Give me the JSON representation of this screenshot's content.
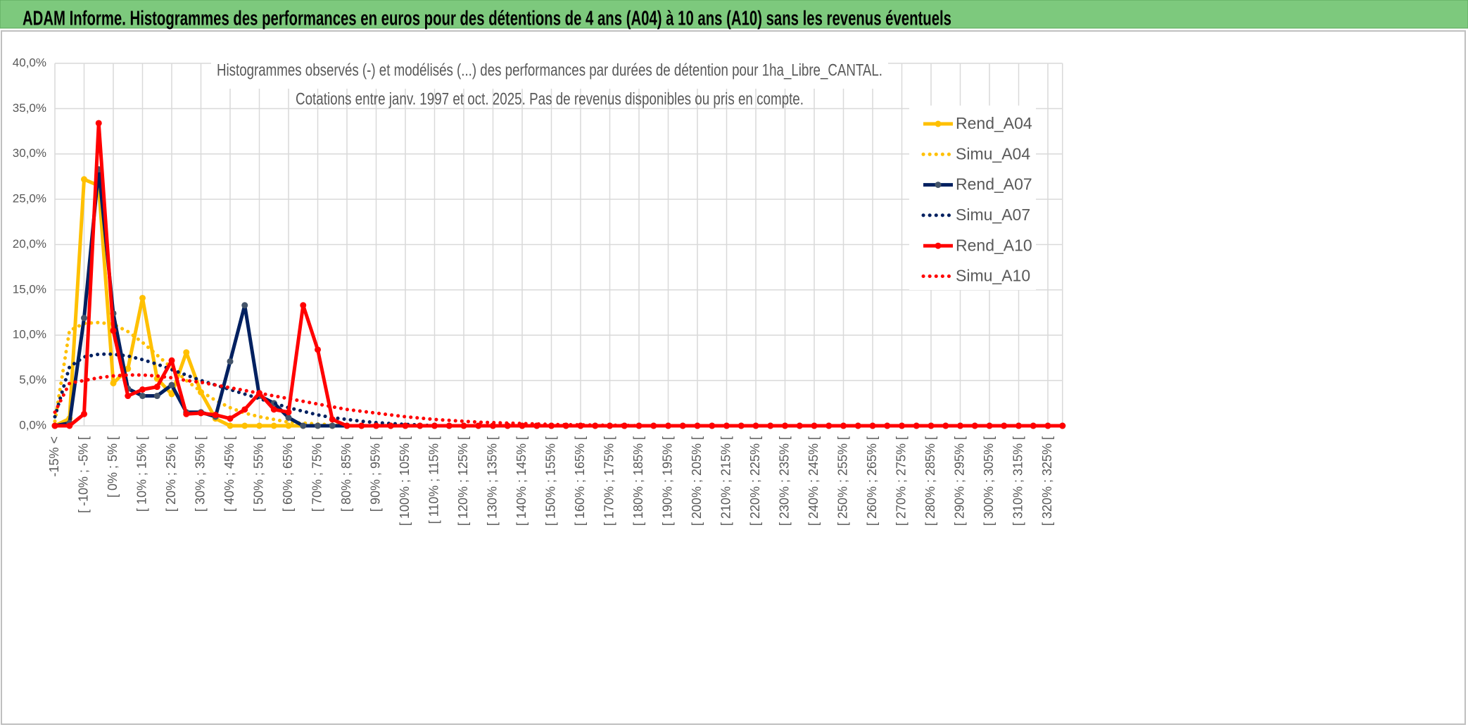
{
  "header": {
    "title": "ADAM Informe. Histogrammes des performances en euros pour des détentions de 4 ans (A04) à 10 ans (A10) sans les revenus éventuels"
  },
  "chart_data": {
    "type": "line",
    "title": "Histogrammes observés (-) et modélisés (...) des performances par durées de détention pour 1ha_Libre_CANTAL.",
    "subtitle": "Cotations entre janv. 1997 et oct. 2025. Pas de revenus disponibles ou pris en compte.",
    "categories": [
      "-15% <",
      null,
      "[ -10% ; -5% [",
      null,
      "[ 0% ; 5% [",
      null,
      "[ 10% ; 15% [",
      null,
      "[ 20% ; 25% [",
      null,
      "[ 30% ; 35% [",
      null,
      "[ 40% ; 45% [",
      null,
      "[ 50% ; 55% [",
      null,
      "[ 60% ; 65% [",
      null,
      "[ 70% ; 75% [",
      null,
      "[ 80% ; 85% [",
      null,
      "[ 90% ; 95% [",
      null,
      "[ 100% ; 105% [",
      null,
      "[ 110% ; 115% [",
      null,
      "[ 120% ; 125% [",
      null,
      "[ 130% ; 135% [",
      null,
      "[ 140% ; 145% [",
      null,
      "[ 150% ; 155% [",
      null,
      "[ 160% ; 165% [",
      null,
      "[ 170% ; 175% [",
      null,
      "[ 180% ; 185% [",
      null,
      "[ 190% ; 195% [",
      null,
      "[ 200% ; 205% [",
      null,
      "[ 210% ; 215% [",
      null,
      "[ 220% ; 225% [",
      null,
      "[ 230% ; 235% [",
      null,
      "[ 240% ; 245% [",
      null,
      "[ 250% ; 255% [",
      null,
      "[ 260% ; 265% [",
      null,
      "[ 270% ; 275% [",
      null,
      "[ 280% ; 285% [",
      null,
      "[ 290% ; 295% [",
      null,
      "[ 300% ; 305% [",
      null,
      "[ 310% ; 315% [",
      null,
      "[ 320% ; 325% [",
      null
    ],
    "series": [
      {
        "name": "Rend_A04",
        "color": "#ffc000",
        "style": "solid",
        "markers": true,
        "values": [
          0,
          0.8,
          27.2,
          26.5,
          4.7,
          6.3,
          14.1,
          5.2,
          3.5,
          8.1,
          3.7,
          0.8,
          0,
          0,
          0,
          0,
          0,
          0,
          0,
          0,
          0,
          0,
          0,
          0,
          0,
          0,
          0,
          0,
          0,
          0,
          0,
          0,
          0,
          0,
          0,
          0,
          0,
          0,
          0,
          0,
          0,
          0,
          0,
          0,
          0,
          0,
          0,
          0,
          0,
          0,
          0,
          0,
          0,
          0,
          0,
          0,
          0,
          0,
          0,
          0,
          0,
          0,
          0,
          0,
          0,
          0,
          0,
          0,
          0,
          0
        ]
      },
      {
        "name": "Simu_A04",
        "color": "#ffc000",
        "style": "dotted",
        "markers": false,
        "values": [
          0.5,
          10.5,
          11.3,
          11.4,
          11.2,
          10.4,
          9.2,
          7.8,
          6.4,
          5.0,
          3.8,
          2.8,
          2.0,
          1.4,
          1.0,
          0.7,
          0.4,
          0.3,
          0.2,
          0.1,
          0,
          0,
          0,
          0,
          0,
          0,
          0,
          0,
          0,
          0,
          0,
          0,
          0,
          0,
          0,
          0,
          0,
          0,
          0,
          0,
          0,
          0,
          0,
          0,
          0,
          0,
          0,
          0,
          0,
          0,
          0,
          0,
          0,
          0,
          0,
          0,
          0,
          0,
          0,
          0,
          0,
          0,
          0,
          0,
          0,
          0,
          0,
          0,
          0,
          0
        ]
      },
      {
        "name": "Rend_A07",
        "color": "#002060",
        "style": "solid",
        "markers": true,
        "values": [
          0,
          0.3,
          11.9,
          28.3,
          12.4,
          4.1,
          3.3,
          3.3,
          4.5,
          1.5,
          1.5,
          1.0,
          7.1,
          13.3,
          3.3,
          2.5,
          0.9,
          0,
          0,
          0,
          0,
          0,
          0,
          0,
          0,
          0,
          0,
          0,
          0,
          0,
          0,
          0,
          0,
          0,
          0,
          0,
          0,
          0,
          0,
          0,
          0,
          0,
          0,
          0,
          0,
          0,
          0,
          0,
          0,
          0,
          0,
          0,
          0,
          0,
          0,
          0,
          0,
          0,
          0,
          0,
          0,
          0,
          0,
          0,
          0,
          0,
          0,
          0,
          0,
          0
        ]
      },
      {
        "name": "Simu_A07",
        "color": "#002060",
        "style": "dotted",
        "markers": false,
        "values": [
          1.0,
          6.5,
          7.6,
          7.9,
          7.9,
          7.7,
          7.3,
          6.8,
          6.2,
          5.6,
          5.0,
          4.5,
          4.0,
          3.5,
          3.0,
          2.5,
          2.0,
          1.6,
          1.2,
          0.9,
          0.7,
          0.5,
          0.35,
          0.25,
          0.15,
          0.1,
          0,
          0,
          0,
          0,
          0,
          0,
          0,
          0,
          0,
          0,
          0,
          0,
          0,
          0,
          0,
          0,
          0,
          0,
          0,
          0,
          0,
          0,
          0,
          0,
          0,
          0,
          0,
          0,
          0,
          0,
          0,
          0,
          0,
          0,
          0,
          0,
          0,
          0,
          0,
          0,
          0,
          0,
          0,
          0
        ]
      },
      {
        "name": "Rend_A10",
        "color": "#ff0000",
        "style": "solid",
        "markers": true,
        "values": [
          0,
          0,
          1.3,
          33.4,
          10.5,
          3.3,
          4.0,
          4.3,
          7.2,
          1.3,
          1.4,
          1.2,
          0.8,
          1.8,
          3.6,
          1.8,
          1.5,
          13.3,
          8.4,
          0.7,
          0,
          0,
          0,
          0,
          0,
          0,
          0,
          0,
          0,
          0,
          0,
          0,
          0,
          0,
          0,
          0,
          0,
          0,
          0,
          0,
          0,
          0,
          0,
          0,
          0,
          0,
          0,
          0,
          0,
          0,
          0,
          0,
          0,
          0,
          0,
          0,
          0,
          0,
          0,
          0,
          0,
          0,
          0,
          0,
          0,
          0,
          0,
          0,
          0,
          0
        ]
      },
      {
        "name": "Simu_A10",
        "color": "#ff0000",
        "style": "dotted",
        "markers": false,
        "values": [
          1.5,
          4.7,
          5.0,
          5.3,
          5.5,
          5.6,
          5.6,
          5.5,
          5.3,
          5.0,
          4.8,
          4.5,
          4.2,
          3.9,
          3.6,
          3.3,
          3.0,
          2.7,
          2.4,
          2.1,
          1.8,
          1.6,
          1.4,
          1.2,
          1.0,
          0.85,
          0.7,
          0.6,
          0.5,
          0.4,
          0.35,
          0.3,
          0.25,
          0.2,
          0.15,
          0.12,
          0.1,
          0.08,
          0.06,
          0.05,
          0,
          0,
          0,
          0,
          0,
          0,
          0,
          0,
          0,
          0,
          0,
          0,
          0,
          0,
          0,
          0,
          0,
          0,
          0,
          0,
          0,
          0,
          0,
          0,
          0,
          0,
          0,
          0,
          0,
          0
        ]
      }
    ],
    "ylim": [
      0,
      40
    ],
    "yticks": [
      {
        "value": 0,
        "label": "0,0%"
      },
      {
        "value": 5,
        "label": "5,0%"
      },
      {
        "value": 10,
        "label": "10,0%"
      },
      {
        "value": 15,
        "label": "15,0%"
      },
      {
        "value": 20,
        "label": "20,0%"
      },
      {
        "value": 25,
        "label": "25,0%"
      },
      {
        "value": 30,
        "label": "30,0%"
      },
      {
        "value": 35,
        "label": "35,0%"
      },
      {
        "value": 40,
        "label": "40,0%"
      }
    ],
    "grid": true,
    "legend": "right"
  }
}
